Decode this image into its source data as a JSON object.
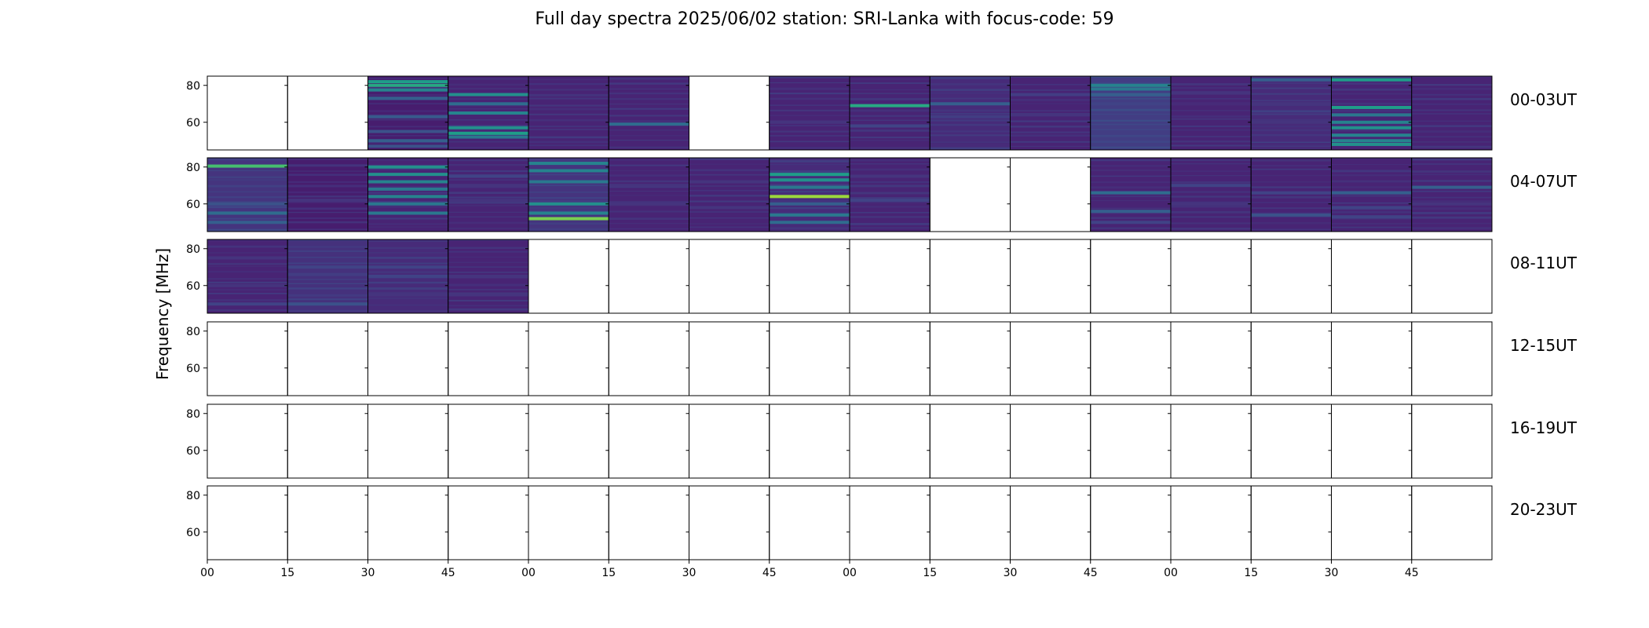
{
  "figure": {
    "title": "Full day spectra 2025/06/02 station: SRI-Lanka with focus-code: 59",
    "ylabel": "Frequency [MHz]"
  },
  "chart_data": {
    "type": "heatmap",
    "title": "Full day spectra 2025/06/02 station: SRI-Lanka with focus-code: 59",
    "xlabel": "",
    "ylabel": "Frequency [MHz]",
    "ylim": [
      45,
      85
    ],
    "yticks": [
      60,
      80
    ],
    "xtick_labels": [
      "00",
      "15",
      "30",
      "45",
      "00",
      "15",
      "30",
      "45",
      "00",
      "15",
      "30",
      "45",
      "00",
      "15",
      "30",
      "45"
    ],
    "colormap": "viridis",
    "panel_minutes": 15,
    "rows": [
      {
        "label": "00-03UT",
        "panels": [
          {
            "has_data": false
          },
          {
            "has_data": false
          },
          {
            "has_data": true,
            "base": 0.08,
            "bands": [
              [
                80,
                0.6
              ],
              [
                82,
                0.55
              ],
              [
                77.5,
                0.45
              ],
              [
                73,
                0.3
              ],
              [
                63,
                0.28
              ],
              [
                55,
                0.25
              ],
              [
                50,
                0.3
              ],
              [
                47,
                0.25
              ]
            ]
          },
          {
            "has_data": true,
            "base": 0.1,
            "bands": [
              [
                75,
                0.5
              ],
              [
                70,
                0.35
              ],
              [
                65,
                0.45
              ],
              [
                57,
                0.5
              ],
              [
                54,
                0.55
              ],
              [
                52,
                0.4
              ]
            ]
          },
          {
            "has_data": true,
            "base": 0.1,
            "bands": []
          },
          {
            "has_data": true,
            "base": 0.1,
            "bands": [
              [
                59,
                0.35
              ]
            ]
          },
          {
            "has_data": false
          },
          {
            "has_data": true,
            "base": 0.1,
            "bands": [
              [
                60,
                0.15
              ]
            ]
          },
          {
            "has_data": true,
            "base": 0.1,
            "bands": [
              [
                69,
                0.6
              ],
              [
                58,
                0.2
              ]
            ]
          },
          {
            "has_data": true,
            "base": 0.12,
            "bands": [
              [
                70,
                0.3
              ],
              [
                63,
                0.18
              ]
            ]
          },
          {
            "has_data": true,
            "base": 0.1,
            "bands": [
              [
                75,
                0.18
              ],
              [
                64,
                0.15
              ]
            ]
          },
          {
            "has_data": true,
            "base": 0.18,
            "bands": [
              [
                80,
                0.45
              ],
              [
                78,
                0.4
              ],
              [
                75,
                0.3
              ],
              [
                70,
                0.2
              ]
            ]
          },
          {
            "has_data": true,
            "base": 0.1,
            "bands": [
              [
                76,
                0.15
              ],
              [
                70,
                0.12
              ]
            ]
          },
          {
            "has_data": true,
            "base": 0.12,
            "bands": [
              [
                83,
                0.3
              ],
              [
                70,
                0.15
              ],
              [
                60,
                0.15
              ]
            ]
          },
          {
            "has_data": true,
            "base": 0.1,
            "bands": [
              [
                83,
                0.55
              ],
              [
                68,
                0.55
              ],
              [
                64,
                0.4
              ],
              [
                60,
                0.45
              ],
              [
                57,
                0.5
              ],
              [
                53,
                0.45
              ],
              [
                50,
                0.45
              ],
              [
                48,
                0.5
              ]
            ]
          },
          {
            "has_data": true,
            "base": 0.1,
            "bands": []
          }
        ]
      },
      {
        "label": "04-07UT",
        "panels": [
          {
            "has_data": true,
            "base": 0.15,
            "bands": [
              [
                80.5,
                0.7
              ],
              [
                60,
                0.25
              ],
              [
                55,
                0.35
              ],
              [
                50,
                0.3
              ]
            ]
          },
          {
            "has_data": true,
            "base": 0.08,
            "bands": [
              [
                62,
                0.15
              ]
            ]
          },
          {
            "has_data": true,
            "base": 0.1,
            "bands": [
              [
                80,
                0.5
              ],
              [
                76,
                0.5
              ],
              [
                72,
                0.45
              ],
              [
                68,
                0.4
              ],
              [
                64,
                0.45
              ],
              [
                60,
                0.4
              ],
              [
                55,
                0.4
              ]
            ]
          },
          {
            "has_data": true,
            "base": 0.1,
            "bands": [
              [
                75,
                0.2
              ],
              [
                70,
                0.15
              ],
              [
                62,
                0.15
              ]
            ]
          },
          {
            "has_data": true,
            "base": 0.15,
            "bands": [
              [
                82,
                0.45
              ],
              [
                78,
                0.45
              ],
              [
                72,
                0.4
              ],
              [
                60,
                0.5
              ],
              [
                55,
                0.45
              ],
              [
                52,
                0.8
              ]
            ]
          },
          {
            "has_data": true,
            "base": 0.1,
            "bands": [
              [
                70,
                0.15
              ],
              [
                60,
                0.15
              ]
            ]
          },
          {
            "has_data": true,
            "base": 0.1,
            "bands": [
              [
                72,
                0.15
              ],
              [
                58,
                0.15
              ]
            ]
          },
          {
            "has_data": true,
            "base": 0.12,
            "bands": [
              [
                76,
                0.55
              ],
              [
                73,
                0.5
              ],
              [
                69,
                0.4
              ],
              [
                64,
                0.85
              ],
              [
                60,
                0.3
              ],
              [
                54,
                0.4
              ],
              [
                50,
                0.35
              ]
            ]
          },
          {
            "has_data": true,
            "base": 0.1,
            "bands": [
              [
                75,
                0.15
              ],
              [
                62,
                0.2
              ]
            ]
          },
          {
            "has_data": false
          },
          {
            "has_data": false
          },
          {
            "has_data": true,
            "base": 0.1,
            "bands": [
              [
                66,
                0.35
              ],
              [
                56,
                0.3
              ],
              [
                50,
                0.2
              ]
            ]
          },
          {
            "has_data": true,
            "base": 0.1,
            "bands": [
              [
                70,
                0.2
              ],
              [
                60,
                0.15
              ]
            ]
          },
          {
            "has_data": true,
            "base": 0.1,
            "bands": [
              [
                66,
                0.2
              ],
              [
                54,
                0.25
              ]
            ]
          },
          {
            "has_data": true,
            "base": 0.1,
            "bands": [
              [
                66,
                0.3
              ],
              [
                58,
                0.2
              ],
              [
                53,
                0.2
              ]
            ]
          },
          {
            "has_data": true,
            "base": 0.1,
            "bands": [
              [
                69,
                0.3
              ],
              [
                60,
                0.15
              ]
            ]
          }
        ]
      },
      {
        "label": "08-11UT",
        "panels": [
          {
            "has_data": true,
            "base": 0.1,
            "bands": [
              [
                75,
                0.15
              ],
              [
                60,
                0.15
              ],
              [
                50,
                0.2
              ]
            ]
          },
          {
            "has_data": true,
            "base": 0.14,
            "bands": [
              [
                70,
                0.2
              ],
              [
                66,
                0.18
              ],
              [
                50,
                0.25
              ]
            ]
          },
          {
            "has_data": true,
            "base": 0.12,
            "bands": [
              [
                70,
                0.2
              ],
              [
                65,
                0.2
              ],
              [
                55,
                0.15
              ]
            ]
          },
          {
            "has_data": true,
            "base": 0.1,
            "bands": [
              [
                65,
                0.15
              ],
              [
                55,
                0.15
              ]
            ]
          },
          {
            "has_data": false
          },
          {
            "has_data": false
          },
          {
            "has_data": false
          },
          {
            "has_data": false
          },
          {
            "has_data": false
          },
          {
            "has_data": false
          },
          {
            "has_data": false
          },
          {
            "has_data": false
          },
          {
            "has_data": false
          },
          {
            "has_data": false
          },
          {
            "has_data": false
          },
          {
            "has_data": false
          }
        ]
      },
      {
        "label": "12-15UT",
        "panels": [
          {
            "has_data": false
          },
          {
            "has_data": false
          },
          {
            "has_data": false
          },
          {
            "has_data": false
          },
          {
            "has_data": false
          },
          {
            "has_data": false
          },
          {
            "has_data": false
          },
          {
            "has_data": false
          },
          {
            "has_data": false
          },
          {
            "has_data": false
          },
          {
            "has_data": false
          },
          {
            "has_data": false
          },
          {
            "has_data": false
          },
          {
            "has_data": false
          },
          {
            "has_data": false
          },
          {
            "has_data": false
          }
        ]
      },
      {
        "label": "16-19UT",
        "panels": [
          {
            "has_data": false
          },
          {
            "has_data": false
          },
          {
            "has_data": false
          },
          {
            "has_data": false
          },
          {
            "has_data": false
          },
          {
            "has_data": false
          },
          {
            "has_data": false
          },
          {
            "has_data": false
          },
          {
            "has_data": false
          },
          {
            "has_data": false
          },
          {
            "has_data": false
          },
          {
            "has_data": false
          },
          {
            "has_data": false
          },
          {
            "has_data": false
          },
          {
            "has_data": false
          },
          {
            "has_data": false
          }
        ]
      },
      {
        "label": "20-23UT",
        "panels": [
          {
            "has_data": false
          },
          {
            "has_data": false
          },
          {
            "has_data": false
          },
          {
            "has_data": false
          },
          {
            "has_data": false
          },
          {
            "has_data": false
          },
          {
            "has_data": false
          },
          {
            "has_data": false
          },
          {
            "has_data": false
          },
          {
            "has_data": false
          },
          {
            "has_data": false
          },
          {
            "has_data": false
          },
          {
            "has_data": false
          },
          {
            "has_data": false
          },
          {
            "has_data": false
          },
          {
            "has_data": false
          }
        ]
      }
    ]
  }
}
